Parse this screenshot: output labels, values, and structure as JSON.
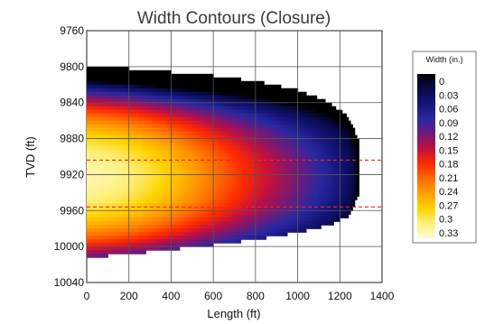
{
  "chart_data": {
    "type": "heatmap",
    "title": "Width Contours (Closure)",
    "xlabel": "Length (ft)",
    "ylabel": "TVD (ft)",
    "xlim": [
      0,
      1400
    ],
    "ylim": [
      9760,
      10040
    ],
    "x_ticks": [
      "0",
      "200",
      "400",
      "600",
      "800",
      "1000",
      "1200",
      "1400"
    ],
    "y_ticks": [
      "9760",
      "9800",
      "9840",
      "9880",
      "9920",
      "9960",
      "10000",
      "10040"
    ],
    "grid": true,
    "y_inverted": true,
    "legend": {
      "title": "Width (in.)",
      "position": "right",
      "levels": [
        "0",
        "0.03",
        "0.06",
        "0.09",
        "0.12",
        "0.15",
        "0.18",
        "0.21",
        "0.24",
        "0.27",
        "0.3",
        "0.33"
      ],
      "colors": [
        "#000000",
        "#0a0a4a",
        "#141478",
        "#2828a0",
        "#701a7a",
        "#c01040",
        "#ff2a00",
        "#ff6a00",
        "#ffa000",
        "#ffd200",
        "#fff07a",
        "#fffbd8"
      ]
    },
    "reference_lines": [
      {
        "orientation": "horizontal",
        "y": 9904,
        "color": "#ff2020",
        "style": "dashed"
      },
      {
        "orientation": "horizontal",
        "y": 9956,
        "color": "#ff2020",
        "style": "dashed"
      }
    ],
    "fracture_profile": {
      "top_tvd": [
        [
          0,
          9800
        ],
        [
          200,
          9802
        ],
        [
          400,
          9806
        ],
        [
          600,
          9810
        ],
        [
          800,
          9816
        ],
        [
          1000,
          9826
        ],
        [
          1150,
          9840
        ],
        [
          1240,
          9856
        ],
        [
          1285,
          9880
        ]
      ],
      "bottom_tvd": [
        [
          0,
          10012
        ],
        [
          200,
          10008
        ],
        [
          400,
          10003
        ],
        [
          600,
          9998
        ],
        [
          800,
          9992
        ],
        [
          1000,
          9984
        ],
        [
          1150,
          9976
        ],
        [
          1240,
          9966
        ],
        [
          1285,
          9945
        ]
      ],
      "tip_length": 1285,
      "center_tvd": 9922,
      "max_width_in": 0.33,
      "max_width_location_ft": 250
    }
  }
}
